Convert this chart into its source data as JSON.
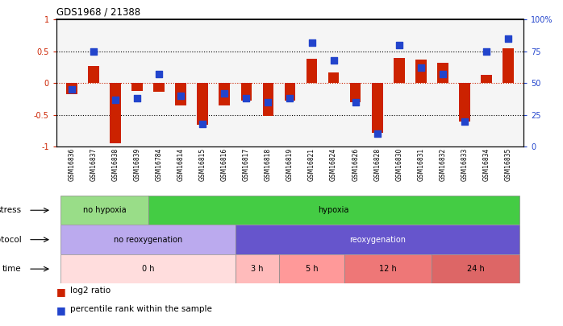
{
  "title": "GDS1968 / 21388",
  "samples": [
    "GSM16836",
    "GSM16837",
    "GSM16838",
    "GSM16839",
    "GSM16784",
    "GSM16814",
    "GSM16815",
    "GSM16816",
    "GSM16817",
    "GSM16818",
    "GSM16819",
    "GSM16821",
    "GSM16824",
    "GSM16826",
    "GSM16828",
    "GSM16830",
    "GSM16831",
    "GSM16832",
    "GSM16833",
    "GSM16834",
    "GSM16835"
  ],
  "log2_ratio": [
    -0.18,
    0.27,
    -0.95,
    -0.12,
    -0.13,
    -0.35,
    -0.65,
    -0.35,
    -0.28,
    -0.52,
    -0.28,
    0.38,
    0.17,
    -0.3,
    -0.78,
    0.4,
    0.37,
    0.32,
    -0.6,
    0.13,
    0.55
  ],
  "percentile": [
    45,
    75,
    37,
    38,
    57,
    40,
    18,
    42,
    38,
    35,
    38,
    82,
    68,
    35,
    10,
    80,
    62,
    57,
    20,
    75,
    85
  ],
  "bar_color": "#cc2200",
  "dot_color": "#2244cc",
  "ylim_left": [
    -1,
    1
  ],
  "ylim_right": [
    0,
    100
  ],
  "yticks_left": [
    -1,
    -0.5,
    0,
    0.5,
    1
  ],
  "yticks_right": [
    0,
    25,
    50,
    75,
    100
  ],
  "ytick_labels_right": [
    "0",
    "25",
    "50",
    "75",
    "100%"
  ],
  "stress_groups": [
    {
      "label": "no hypoxia",
      "start": 0,
      "end": 4,
      "color": "#99dd88"
    },
    {
      "label": "hypoxia",
      "start": 4,
      "end": 21,
      "color": "#44cc44"
    }
  ],
  "protocol_groups": [
    {
      "label": "no reoxygenation",
      "start": 0,
      "end": 8,
      "color": "#bbaaee"
    },
    {
      "label": "reoxygenation",
      "start": 8,
      "end": 21,
      "color": "#6655cc"
    }
  ],
  "time_groups": [
    {
      "label": "0 h",
      "start": 0,
      "end": 8,
      "color": "#ffdddd"
    },
    {
      "label": "3 h",
      "start": 8,
      "end": 10,
      "color": "#ffbbbb"
    },
    {
      "label": "5 h",
      "start": 10,
      "end": 13,
      "color": "#ff9999"
    },
    {
      "label": "12 h",
      "start": 13,
      "end": 17,
      "color": "#ee7777"
    },
    {
      "label": "24 h",
      "start": 17,
      "end": 21,
      "color": "#dd6666"
    }
  ],
  "bar_width": 0.5,
  "dot_size": 35,
  "background_color": "#ffffff",
  "axis_label_color": "#cc2200",
  "right_axis_color": "#2244cc",
  "stress_row_label": "stress",
  "protocol_row_label": "protocol",
  "time_row_label": "time",
  "legend_red": "log2 ratio",
  "legend_blue": "percentile rank within the sample"
}
